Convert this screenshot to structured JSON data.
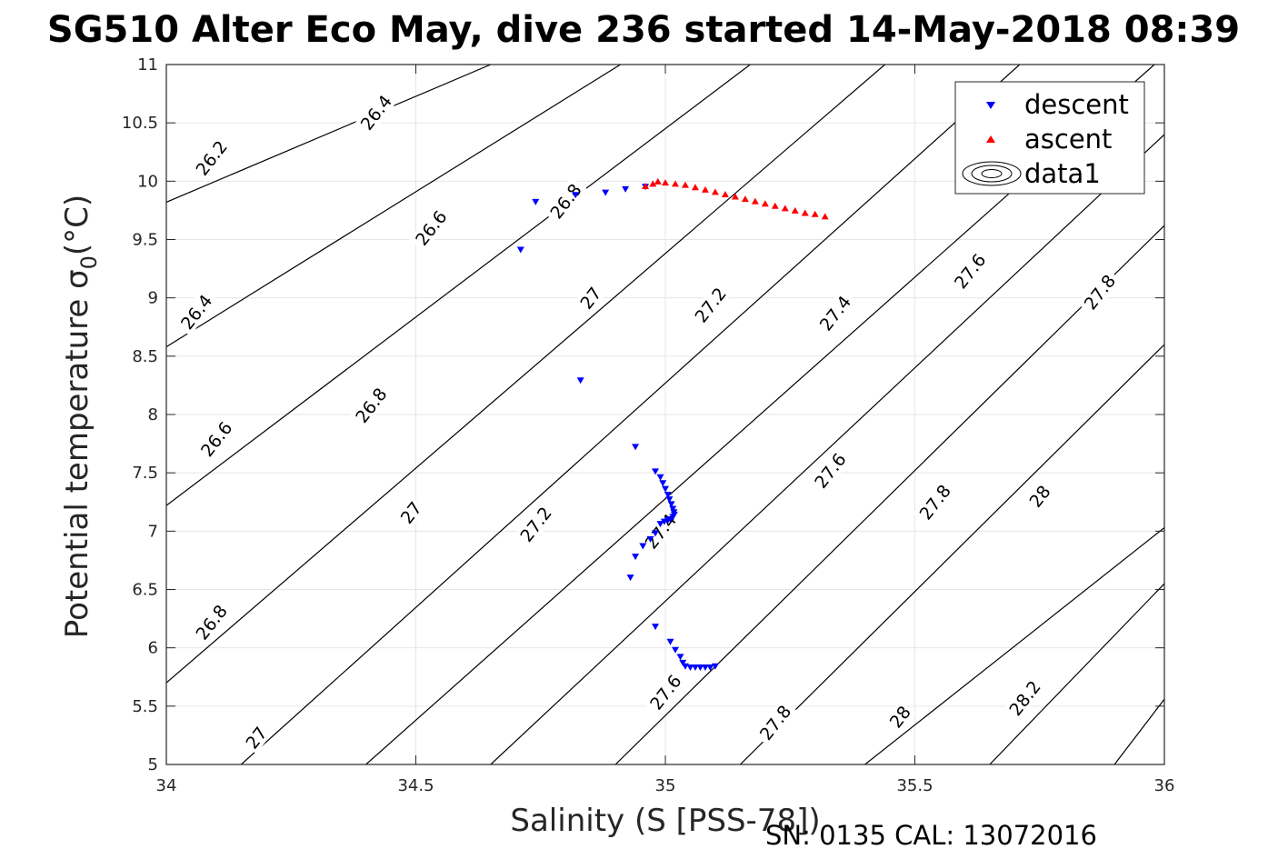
{
  "chart_data": {
    "type": "scatter",
    "title": "SG510 Alter Eco May, dive 236 started 14-May-2018 08:39",
    "xlabel": "Salinity (S [PSS-78])",
    "ylabel": "Potential temperature σ",
    "ylabel_subscript": "0",
    "ylabel_unit": "(°C)",
    "footer": "SN: 0135  CAL: 13072016",
    "xlim": [
      34,
      36
    ],
    "ylim": [
      5,
      11
    ],
    "xticks": [
      "34",
      "34.5",
      "35",
      "35.5",
      "36"
    ],
    "yticks": [
      "5",
      "5.5",
      "6",
      "6.5",
      "7",
      "7.5",
      "8",
      "8.5",
      "9",
      "9.5",
      "10",
      "10.5",
      "11"
    ],
    "grid": true,
    "legend_position": "top-right",
    "legend": [
      "descent",
      "ascent",
      "data1"
    ],
    "series": [
      {
        "name": "descent",
        "marker": "triangle-down",
        "color": "#0000ff",
        "points": [
          [
            34.71,
            9.41
          ],
          [
            34.74,
            9.82
          ],
          [
            34.82,
            9.88
          ],
          [
            34.88,
            9.9
          ],
          [
            34.92,
            9.93
          ],
          [
            34.96,
            9.95
          ],
          [
            34.83,
            8.29
          ],
          [
            34.94,
            7.72
          ],
          [
            34.98,
            7.51
          ],
          [
            34.99,
            7.46
          ],
          [
            34.995,
            7.41
          ],
          [
            35.0,
            7.36
          ],
          [
            35.005,
            7.31
          ],
          [
            35.008,
            7.27
          ],
          [
            35.012,
            7.23
          ],
          [
            35.015,
            7.19
          ],
          [
            35.017,
            7.16
          ],
          [
            35.018,
            7.14
          ],
          [
            35.015,
            7.12
          ],
          [
            35.01,
            7.1
          ],
          [
            35.005,
            7.09
          ],
          [
            34.998,
            7.08
          ],
          [
            34.99,
            7.06
          ],
          [
            34.98,
            6.98
          ],
          [
            34.97,
            6.93
          ],
          [
            34.955,
            6.87
          ],
          [
            34.94,
            6.78
          ],
          [
            34.93,
            6.6
          ],
          [
            34.98,
            6.18
          ],
          [
            35.01,
            6.05
          ],
          [
            35.02,
            5.98
          ],
          [
            35.03,
            5.92
          ],
          [
            35.035,
            5.87
          ],
          [
            35.04,
            5.84
          ],
          [
            35.05,
            5.83
          ],
          [
            35.06,
            5.83
          ],
          [
            35.07,
            5.83
          ],
          [
            35.08,
            5.83
          ],
          [
            35.09,
            5.83
          ],
          [
            35.1,
            5.84
          ]
        ]
      },
      {
        "name": "ascent",
        "marker": "triangle-up",
        "color": "#ff0000",
        "points": [
          [
            34.96,
            9.96
          ],
          [
            34.975,
            9.98
          ],
          [
            34.985,
            10.0
          ],
          [
            35.0,
            9.99
          ],
          [
            35.02,
            9.98
          ],
          [
            35.04,
            9.97
          ],
          [
            35.06,
            9.95
          ],
          [
            35.08,
            9.93
          ],
          [
            35.1,
            9.91
          ],
          [
            35.12,
            9.89
          ],
          [
            35.14,
            9.87
          ],
          [
            35.16,
            9.85
          ],
          [
            35.18,
            9.83
          ],
          [
            35.2,
            9.81
          ],
          [
            35.22,
            9.79
          ],
          [
            35.24,
            9.77
          ],
          [
            35.26,
            9.75
          ],
          [
            35.28,
            9.73
          ],
          [
            35.3,
            9.72
          ],
          [
            35.32,
            9.7
          ]
        ]
      }
    ],
    "density_contours": {
      "levels": [
        "26.2",
        "26.4",
        "26.6",
        "26.8",
        "27",
        "27.2",
        "27.4",
        "27.6",
        "27.8",
        "28",
        "28.2"
      ],
      "lines": [
        {
          "label": "26.2",
          "from": [
            34,
            9.82
          ],
          "to": [
            34.65,
            11
          ]
        },
        {
          "label": "26.4",
          "from": [
            34,
            8.58
          ],
          "to": [
            34.91,
            11
          ]
        },
        {
          "label": "26.6",
          "from": [
            34,
            7.22
          ],
          "to": [
            35.17,
            11
          ]
        },
        {
          "label": "26.8",
          "from": [
            34,
            5.7
          ],
          "to": [
            35.44,
            11
          ]
        },
        {
          "label": "27",
          "from": [
            34.15,
            5
          ],
          "to": [
            35.71,
            11
          ]
        },
        {
          "label": "27.2",
          "from": [
            34.4,
            5
          ],
          "to": [
            35.98,
            11
          ]
        },
        {
          "label": "27.4",
          "from": [
            34.65,
            5
          ],
          "to": [
            36,
            10.4
          ]
        },
        {
          "label": "27.6",
          "from": [
            34.9,
            5
          ],
          "to": [
            36,
            9.62
          ]
        },
        {
          "label": "27.8",
          "from": [
            35.15,
            5
          ],
          "to": [
            36,
            8.6
          ]
        },
        {
          "label": "28",
          "from": [
            35.4,
            5
          ],
          "to": [
            36,
            7.03
          ]
        },
        {
          "label": "28.2",
          "from": [
            35.65,
            5
          ],
          "to": [
            36,
            6.55
          ]
        },
        {
          "label": "",
          "from": [
            35.9,
            5
          ],
          "to": [
            36,
            5.56
          ]
        }
      ],
      "labels": [
        {
          "text": "26.2",
          "at": [
            34.09,
            10.2
          ]
        },
        {
          "text": "26.4",
          "at": [
            34.42,
            10.59
          ]
        },
        {
          "text": "26.6",
          "at": [
            34.53,
            9.6
          ]
        },
        {
          "text": "26.8",
          "at": [
            34.8,
            9.83
          ]
        },
        {
          "text": "27",
          "at": [
            34.85,
            9.0
          ]
        },
        {
          "text": "27.2",
          "at": [
            35.09,
            8.94
          ]
        },
        {
          "text": "27.4",
          "at": [
            35.34,
            8.87
          ]
        },
        {
          "text": "27.6",
          "at": [
            35.61,
            9.23
          ]
        },
        {
          "text": "27.8",
          "at": [
            35.87,
            9.05
          ]
        },
        {
          "text": "26.4",
          "at": [
            34.06,
            8.88
          ]
        },
        {
          "text": "26.6",
          "at": [
            34.1,
            7.79
          ]
        },
        {
          "text": "26.8",
          "at": [
            34.41,
            8.08
          ]
        },
        {
          "text": "27",
          "at": [
            34.49,
            7.16
          ]
        },
        {
          "text": "27.2",
          "at": [
            34.74,
            7.06
          ]
        },
        {
          "text": "27.4",
          "at": [
            34.99,
            7.0
          ]
        },
        {
          "text": "27.6",
          "at": [
            35.33,
            7.52
          ]
        },
        {
          "text": "27.8",
          "at": [
            35.54,
            7.25
          ]
        },
        {
          "text": "28",
          "at": [
            35.75,
            7.3
          ]
        },
        {
          "text": "26.8",
          "at": [
            34.09,
            6.22
          ]
        },
        {
          "text": "27",
          "at": [
            34.18,
            5.23
          ]
        },
        {
          "text": "27.6",
          "at": [
            35.0,
            5.62
          ]
        },
        {
          "text": "27.8",
          "at": [
            35.22,
            5.36
          ]
        },
        {
          "text": "28",
          "at": [
            35.47,
            5.41
          ]
        },
        {
          "text": "28.2",
          "at": [
            35.72,
            5.57
          ]
        }
      ]
    }
  }
}
